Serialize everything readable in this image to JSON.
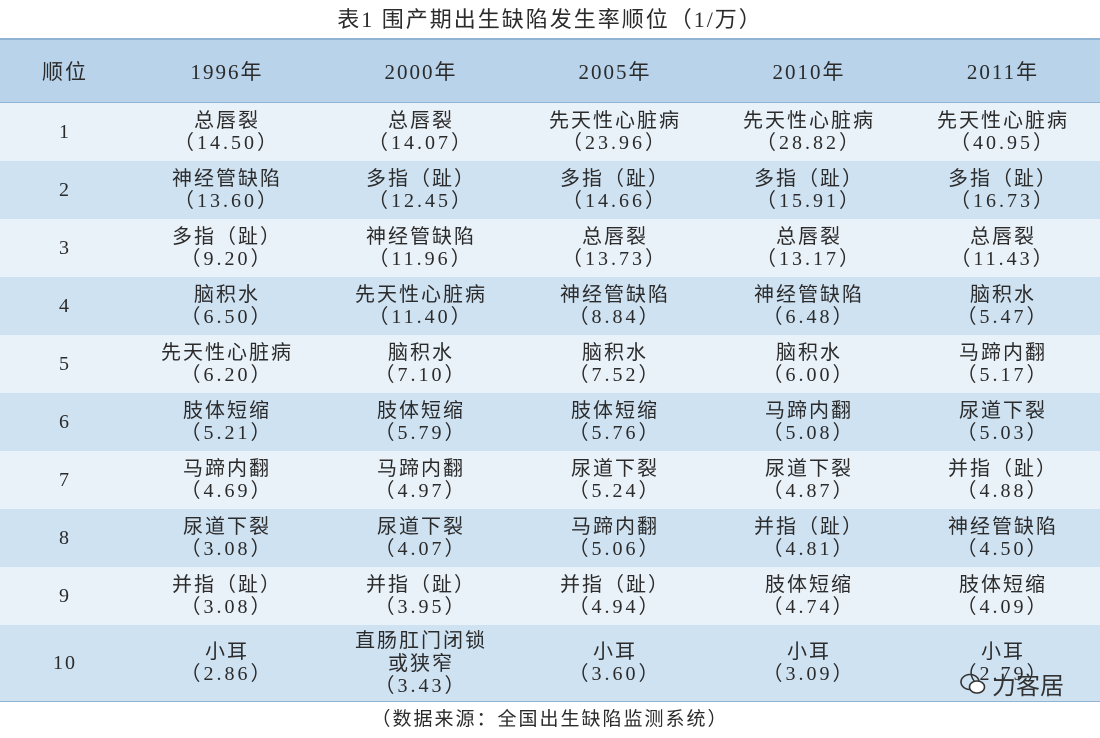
{
  "title": "表1  围产期出生缺陷发生率顺位（1/万）",
  "headers": [
    "顺位",
    "1996年",
    "2000年",
    "2005年",
    "2010年",
    "2011年"
  ],
  "rows": [
    {
      "rank": "1",
      "cells": [
        {
          "name": "总唇裂",
          "value": "（14.50）"
        },
        {
          "name": "总唇裂",
          "value": "（14.07）"
        },
        {
          "name": "先天性心脏病",
          "value": "（23.96）"
        },
        {
          "name": "先天性心脏病",
          "value": "（28.82）"
        },
        {
          "name": "先天性心脏病",
          "value": "（40.95）"
        }
      ]
    },
    {
      "rank": "2",
      "cells": [
        {
          "name": "神经管缺陷",
          "value": "（13.60）"
        },
        {
          "name": "多指（趾）",
          "value": "（12.45）"
        },
        {
          "name": "多指（趾）",
          "value": "（14.66）"
        },
        {
          "name": "多指（趾）",
          "value": "（15.91）"
        },
        {
          "name": "多指（趾）",
          "value": "（16.73）"
        }
      ]
    },
    {
      "rank": "3",
      "cells": [
        {
          "name": "多指（趾）",
          "value": "（9.20）"
        },
        {
          "name": "神经管缺陷",
          "value": "（11.96）"
        },
        {
          "name": "总唇裂",
          "value": "（13.73）"
        },
        {
          "name": "总唇裂",
          "value": "（13.17）"
        },
        {
          "name": "总唇裂",
          "value": "（11.43）"
        }
      ]
    },
    {
      "rank": "4",
      "cells": [
        {
          "name": "脑积水",
          "value": "（6.50）"
        },
        {
          "name": "先天性心脏病",
          "value": "（11.40）"
        },
        {
          "name": "神经管缺陷",
          "value": "（8.84）"
        },
        {
          "name": "神经管缺陷",
          "value": "（6.48）"
        },
        {
          "name": "脑积水",
          "value": "（5.47）"
        }
      ]
    },
    {
      "rank": "5",
      "cells": [
        {
          "name": "先天性心脏病",
          "value": "（6.20）"
        },
        {
          "name": "脑积水",
          "value": "（7.10）"
        },
        {
          "name": "脑积水",
          "value": "（7.52）"
        },
        {
          "name": "脑积水",
          "value": "（6.00）"
        },
        {
          "name": "马蹄内翻",
          "value": "（5.17）"
        }
      ]
    },
    {
      "rank": "6",
      "cells": [
        {
          "name": "肢体短缩",
          "value": "（5.21）"
        },
        {
          "name": "肢体短缩",
          "value": "（5.79）"
        },
        {
          "name": "肢体短缩",
          "value": "（5.76）"
        },
        {
          "name": "马蹄内翻",
          "value": "（5.08）"
        },
        {
          "name": "尿道下裂",
          "value": "（5.03）"
        }
      ]
    },
    {
      "rank": "7",
      "cells": [
        {
          "name": "马蹄内翻",
          "value": "（4.69）"
        },
        {
          "name": "马蹄内翻",
          "value": "（4.97）"
        },
        {
          "name": "尿道下裂",
          "value": "（5.24）"
        },
        {
          "name": "尿道下裂",
          "value": "（4.87）"
        },
        {
          "name": "并指（趾）",
          "value": "（4.88）"
        }
      ]
    },
    {
      "rank": "8",
      "cells": [
        {
          "name": "尿道下裂",
          "value": "（3.08）"
        },
        {
          "name": "尿道下裂",
          "value": "（4.07）"
        },
        {
          "name": "马蹄内翻",
          "value": "（5.06）"
        },
        {
          "name": "并指（趾）",
          "value": "（4.81）"
        },
        {
          "name": "神经管缺陷",
          "value": "（4.50）"
        }
      ]
    },
    {
      "rank": "9",
      "cells": [
        {
          "name": "并指（趾）",
          "value": "（3.08）"
        },
        {
          "name": "并指（趾）",
          "value": "（3.95）"
        },
        {
          "name": "并指（趾）",
          "value": "（4.94）"
        },
        {
          "name": "肢体短缩",
          "value": "（4.74）"
        },
        {
          "name": "肢体短缩",
          "value": "（4.09）"
        }
      ]
    },
    {
      "rank": "10",
      "cells": [
        {
          "name": "小耳",
          "value": "（2.86）"
        },
        {
          "name": "直肠肛门闭锁或狭窄",
          "value": "（3.43）"
        },
        {
          "name": "小耳",
          "value": "（3.60）"
        },
        {
          "name": "小耳",
          "value": "（3.09）"
        },
        {
          "name": "小耳",
          "value": "（2.79）"
        }
      ]
    }
  ],
  "footer": "（数据来源：全国出生缺陷监测系统）",
  "watermark": "力客居"
}
